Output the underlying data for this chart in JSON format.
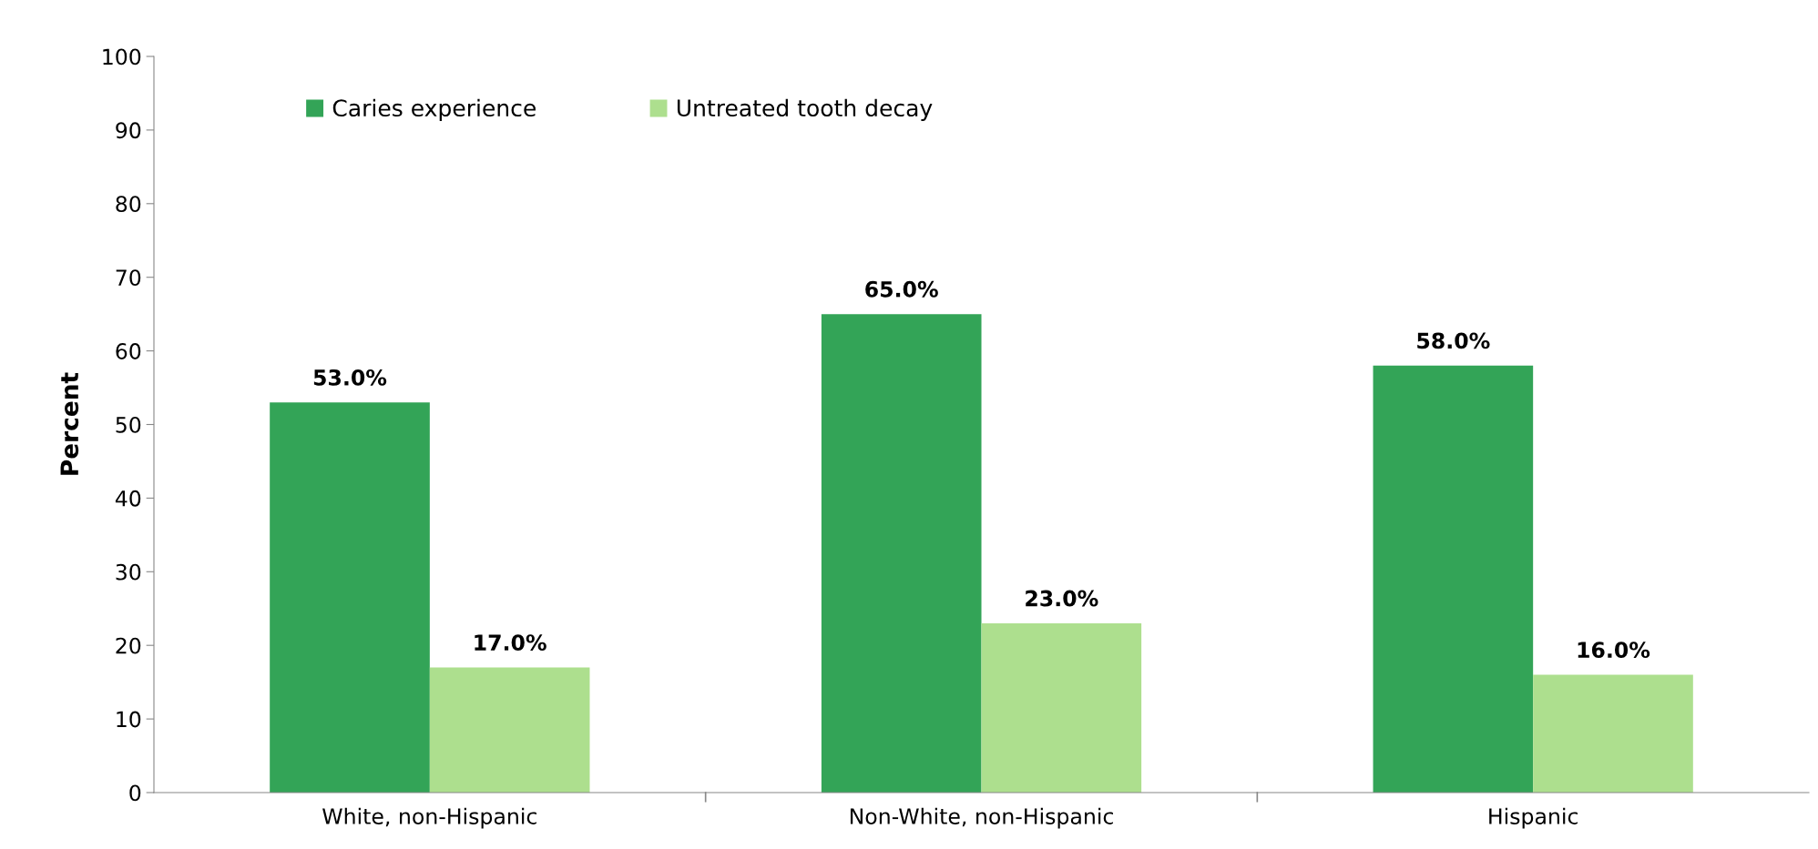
{
  "chart_data": {
    "type": "bar",
    "ylabel": "Percent",
    "categories": [
      "White, non-Hispanic",
      "Non-White, non-Hispanic",
      "Hispanic"
    ],
    "series": [
      {
        "name": "Caries experience",
        "color": "#33a457",
        "values": [
          53.0,
          65.0,
          58.0
        ],
        "value_labels": [
          "53.0%",
          "65.0%",
          "58.0%"
        ]
      },
      {
        "name": "Untreated tooth decay",
        "color": "#addf8e",
        "values": [
          17.0,
          23.0,
          16.0
        ],
        "value_labels": [
          "17.0%",
          "23.0%",
          "16.0%"
        ]
      }
    ],
    "ylim": [
      0,
      100
    ],
    "yticks": [
      0,
      10,
      20,
      30,
      40,
      50,
      60,
      70,
      80,
      90,
      100
    ],
    "grid": false,
    "legend": "top left"
  }
}
